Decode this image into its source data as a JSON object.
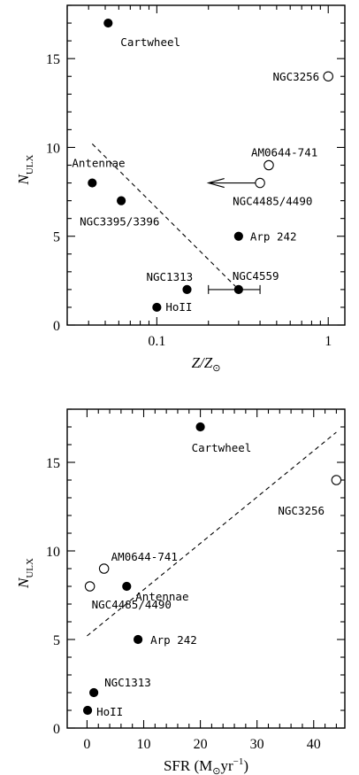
{
  "chart_data": [
    {
      "type": "scatter",
      "x_scale": "log",
      "xlim": [
        0.03,
        1.25
      ],
      "ylim": [
        0,
        18
      ],
      "xlabel": "Z/Z",
      "xlabel_sub": "⊙",
      "ylabel": "N",
      "ylabel_sub": "ULX",
      "xticklabels": [
        {
          "v": 0.1,
          "t": "0.1"
        },
        {
          "v": 1,
          "t": "1"
        }
      ],
      "yticklabels": [
        {
          "v": 0,
          "t": "0"
        },
        {
          "v": 5,
          "t": "5"
        },
        {
          "v": 10,
          "t": "10"
        },
        {
          "v": 15,
          "t": "15"
        }
      ],
      "points": [
        {
          "name": "Cartwheel",
          "x": 0.052,
          "y": 17,
          "filled": true
        },
        {
          "name": "NGC3256",
          "x": 1.0,
          "y": 14,
          "filled": false
        },
        {
          "name": "AM0644-741",
          "x": 0.45,
          "y": 9,
          "filled": false
        },
        {
          "name": "NGC4485/4490",
          "x": 0.4,
          "y": 8,
          "filled": false,
          "upper_limit_x": true
        },
        {
          "name": "Antennae",
          "x": 0.042,
          "y": 8,
          "filled": true
        },
        {
          "name": "NGC3395/3396",
          "x": 0.062,
          "y": 7,
          "filled": true
        },
        {
          "name": "Arp 242",
          "x": 0.3,
          "y": 5,
          "filled": true
        },
        {
          "name": "NGC1313",
          "x": 0.15,
          "y": 2,
          "filled": true
        },
        {
          "name": "NGC4559",
          "x": 0.3,
          "y": 2,
          "filled": true,
          "xerr": [
            0.2,
            0.4
          ]
        },
        {
          "name": "HoII",
          "x": 0.1,
          "y": 1,
          "filled": true
        }
      ],
      "fit": {
        "x": [
          0.042,
          0.3
        ],
        "y": [
          10.2,
          2.0
        ]
      }
    },
    {
      "type": "scatter",
      "xlim": [
        -3.5,
        45.5
      ],
      "ylim": [
        0,
        18
      ],
      "xlabel": "SFR (M",
      "xlabel_sub": "⊙",
      "xlabel_tail": "yr",
      "xlabel_sup": "−1",
      "xlabel_close": ")",
      "ylabel": "N",
      "ylabel_sub": "ULX",
      "xticklabels": [
        {
          "v": 0,
          "t": "0"
        },
        {
          "v": 10,
          "t": "10"
        },
        {
          "v": 20,
          "t": "20"
        },
        {
          "v": 30,
          "t": "30"
        },
        {
          "v": 40,
          "t": "40"
        }
      ],
      "yticklabels": [
        {
          "v": 0,
          "t": "0"
        },
        {
          "v": 5,
          "t": "5"
        },
        {
          "v": 10,
          "t": "10"
        },
        {
          "v": 15,
          "t": "15"
        }
      ],
      "points": [
        {
          "name": "Cartwheel",
          "x": 20,
          "y": 17,
          "filled": true
        },
        {
          "name": "NGC3256",
          "x": 44,
          "y": 14,
          "filled": false
        },
        {
          "name": "AM0644-741",
          "x": 3,
          "y": 9,
          "filled": false
        },
        {
          "name": "NGC4485/4490",
          "x": 0.5,
          "y": 8,
          "filled": false
        },
        {
          "name": "Antennae",
          "x": 7,
          "y": 8,
          "filled": true
        },
        {
          "name": "Arp 242",
          "x": 9,
          "y": 5,
          "filled": true
        },
        {
          "name": "NGC1313",
          "x": 1.2,
          "y": 2,
          "filled": true
        },
        {
          "name": "HoII",
          "x": 0.1,
          "y": 1,
          "filled": true
        }
      ],
      "fit": {
        "x": [
          0,
          44
        ],
        "y": [
          5.2,
          16.7
        ]
      }
    }
  ]
}
